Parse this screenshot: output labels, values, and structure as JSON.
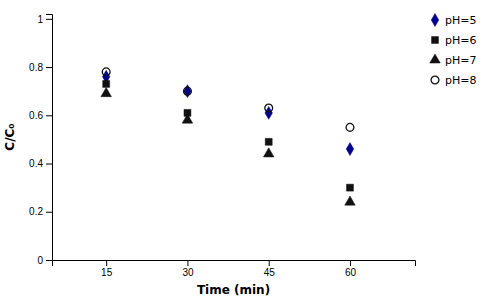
{
  "chart_data": {
    "type": "scatter",
    "x_label": "Time (min)",
    "y_label": "C/C₀",
    "x": [
      15,
      30,
      45,
      60
    ],
    "series": [
      {
        "name": "pH=5",
        "color": "#00008B",
        "marker": "diamond",
        "values": [
          0.76,
          0.7,
          0.61,
          0.46
        ]
      },
      {
        "name": "pH=6",
        "color": "#111111",
        "marker": "square",
        "values": [
          0.73,
          0.61,
          0.49,
          0.3
        ]
      },
      {
        "name": "pH=7",
        "color": "#111111",
        "marker": "triangle",
        "values": [
          0.69,
          0.58,
          0.44,
          0.24
        ]
      },
      {
        "name": "pH=8",
        "color": "#111111",
        "marker": "circle-open",
        "values": [
          0.78,
          0.7,
          0.63,
          0.55
        ]
      }
    ],
    "xlim": [
      5,
      72
    ],
    "xticks": [
      15,
      30,
      45,
      60
    ],
    "ylim": [
      0,
      1.02
    ],
    "yticks": [
      0,
      0.2,
      0.4,
      0.6,
      0.8,
      1
    ],
    "grid": false,
    "legend": "right"
  }
}
